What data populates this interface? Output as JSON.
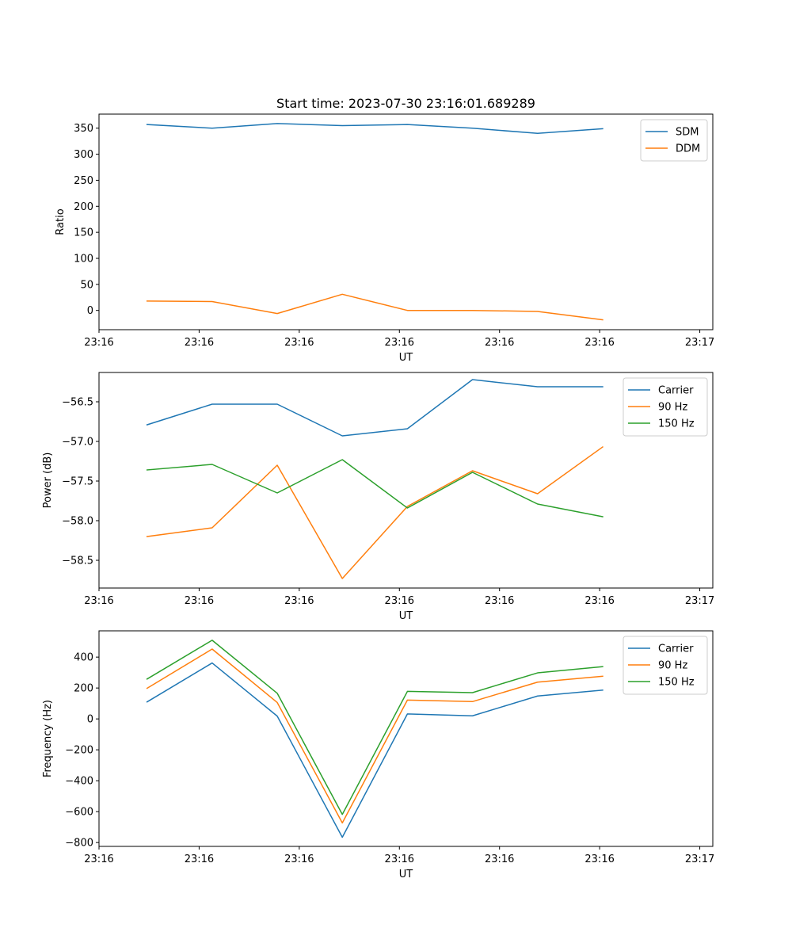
{
  "title": "Start time: 2023-07-30 23:16:01.689289",
  "series_colors": {
    "blue": "#1f77b4",
    "orange": "#ff7f0e",
    "green": "#2ca02c"
  },
  "chart_data": [
    {
      "type": "line",
      "title": "Start time: 2023-07-30 23:16:01.689289",
      "xlabel": "UT",
      "ylabel": "Ratio",
      "xlim": [
        -0.13,
        6.0
      ],
      "ylim": [
        -37,
        377
      ],
      "x_tick_positions": [
        -0.13,
        0.87,
        1.87,
        2.87,
        3.87,
        4.87,
        5.87
      ],
      "x_tick_labels": [
        "23:16",
        "23:16",
        "23:16",
        "23:16",
        "23:16",
        "23:16",
        "23:17"
      ],
      "y_ticks": [
        0,
        50,
        100,
        150,
        200,
        250,
        300,
        350
      ],
      "y_tick_labels": [
        "0",
        "50",
        "100",
        "150",
        "200",
        "250",
        "300",
        "350"
      ],
      "legend_position": "top-right",
      "x": [
        0.35,
        1.0,
        1.65,
        2.3,
        2.95,
        3.6,
        4.25,
        4.9
      ],
      "series": [
        {
          "name": "SDM",
          "color": "#1f77b4",
          "values": [
            357,
            350,
            359,
            355,
            357,
            350,
            340,
            349
          ]
        },
        {
          "name": "DDM",
          "color": "#ff7f0e",
          "values": [
            18,
            17,
            -6,
            31,
            0,
            0,
            -2,
            -18
          ]
        }
      ]
    },
    {
      "type": "line",
      "title": "",
      "xlabel": "UT",
      "ylabel": "Power (dB)",
      "xlim": [
        -0.13,
        6.0
      ],
      "ylim": [
        -58.85,
        -56.13
      ],
      "x_tick_positions": [
        -0.13,
        0.87,
        1.87,
        2.87,
        3.87,
        4.87,
        5.87
      ],
      "x_tick_labels": [
        "23:16",
        "23:16",
        "23:16",
        "23:16",
        "23:16",
        "23:16",
        "23:17"
      ],
      "y_ticks": [
        -58.5,
        -58.0,
        -57.5,
        -57.0,
        -56.5
      ],
      "y_tick_labels": [
        "−58.5",
        "−58.0",
        "−57.5",
        "−57.0",
        "−56.5"
      ],
      "legend_position": "top-right",
      "x": [
        0.35,
        1.0,
        1.65,
        2.3,
        2.95,
        3.6,
        4.25,
        4.9
      ],
      "series": [
        {
          "name": "Carrier",
          "color": "#1f77b4",
          "values": [
            -56.79,
            -56.53,
            -56.53,
            -56.93,
            -56.84,
            -56.22,
            -56.31,
            -56.31
          ]
        },
        {
          "name": "90 Hz",
          "color": "#ff7f0e",
          "values": [
            -58.2,
            -58.09,
            -57.3,
            -58.73,
            -57.82,
            -57.37,
            -57.66,
            -57.07
          ]
        },
        {
          "name": "150 Hz",
          "color": "#2ca02c",
          "values": [
            -57.36,
            -57.29,
            -57.65,
            -57.23,
            -57.84,
            -57.39,
            -57.79,
            -57.95
          ]
        }
      ]
    },
    {
      "type": "line",
      "title": "",
      "xlabel": "UT",
      "ylabel": "Frequency (Hz)",
      "xlim": [
        -0.13,
        6.0
      ],
      "ylim": [
        -825,
        570
      ],
      "x_tick_positions": [
        -0.13,
        0.87,
        1.87,
        2.87,
        3.87,
        4.87,
        5.87
      ],
      "x_tick_labels": [
        "23:16",
        "23:16",
        "23:16",
        "23:16",
        "23:16",
        "23:16",
        "23:17"
      ],
      "y_ticks": [
        -800,
        -600,
        -400,
        -200,
        0,
        200,
        400
      ],
      "y_tick_labels": [
        "−800",
        "−600",
        "−400",
        "−200",
        "0",
        "200",
        "400"
      ],
      "legend_position": "top-right",
      "x": [
        0.35,
        1.0,
        1.65,
        2.3,
        2.95,
        3.6,
        4.25,
        4.9
      ],
      "series": [
        {
          "name": "Carrier",
          "color": "#1f77b4",
          "values": [
            110,
            362,
            18,
            -766,
            32,
            20,
            148,
            186
          ]
        },
        {
          "name": "90 Hz",
          "color": "#ff7f0e",
          "values": [
            198,
            452,
            106,
            -673,
            122,
            112,
            238,
            276
          ]
        },
        {
          "name": "150 Hz",
          "color": "#2ca02c",
          "values": [
            258,
            509,
            166,
            -618,
            178,
            170,
            298,
            338
          ]
        }
      ]
    }
  ]
}
